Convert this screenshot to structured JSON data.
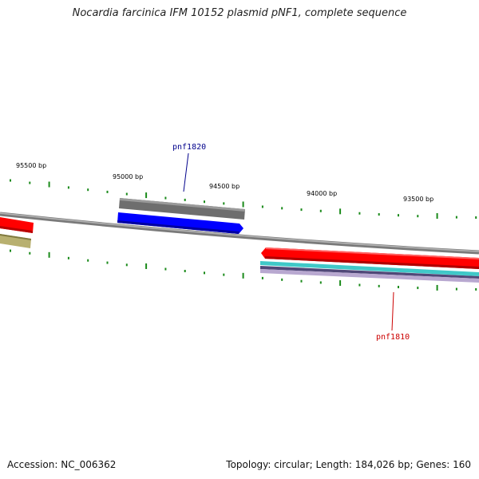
{
  "title": "Nocardia farcinica IFM 10152 plasmid pNF1, complete sequence",
  "footer": {
    "accession": "Accession: NC_006362",
    "summary": "Topology: circular; Length: 184,026 bp; Genes: 160"
  },
  "ruler": {
    "labels": [
      "95500 bp",
      "95000 bp",
      "94500 bp",
      "94000 bp",
      "93500 bp"
    ]
  },
  "genes": [
    {
      "name": "pnf1820",
      "color": "#00008b",
      "strand": "forward"
    },
    {
      "name": "pnf1810",
      "color": "#cc0000",
      "strand": "reverse"
    }
  ],
  "colors": {
    "backbone": "#8a8a8a",
    "tick": "#1a8a1a",
    "gene_forward": "#0000ff",
    "gene_reverse": "#ff0000",
    "gene_gray": "#6e6e6e",
    "gene_olive": "#b8b070",
    "band_cyan": "#40c8c8",
    "band_purple": "#504878",
    "band_lilac": "#b8a8d0"
  }
}
